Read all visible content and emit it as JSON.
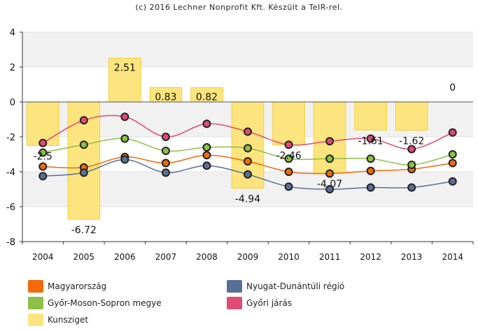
{
  "credit": "(c) 2016 Lechner Nonprofit Kft. Készült a TeIR-rel.",
  "chart_data": {
    "type": "bar+line",
    "categories": [
      "2004",
      "2005",
      "2006",
      "2007",
      "2008",
      "2009",
      "2010",
      "2011",
      "2012",
      "2013",
      "2014"
    ],
    "ylim": [
      -8,
      4
    ],
    "yticks": [
      4,
      2,
      0,
      -2,
      -4,
      -6,
      -8
    ],
    "ytick_labels": [
      "4",
      "2",
      "0",
      "-2",
      "-4",
      "-6",
      "-8"
    ],
    "grid_bands": true,
    "bar_series": {
      "name": "Kunsziget",
      "color": "#fce57e",
      "border": "#f2cf3a",
      "values": [
        -2.5,
        -6.72,
        2.51,
        0.83,
        0.82,
        -4.94,
        -2.46,
        -4.07,
        -1.61,
        -1.62,
        0
      ],
      "labels": [
        "-2.5",
        "-6.72",
        "2.51",
        "0.83",
        "0.82",
        "-4.94",
        "-2.46",
        "-4.07",
        "-1.61",
        "-1.62",
        "0"
      ]
    },
    "line_series": [
      {
        "name": "Magyarország",
        "color": "#f26a0a",
        "values": [
          -3.7,
          -3.75,
          -3.15,
          -3.5,
          -3.05,
          -3.4,
          -4.0,
          -4.1,
          -3.95,
          -3.85,
          -3.5
        ]
      },
      {
        "name": "Nyugat-Dunántúli régió",
        "color": "#5a6f96",
        "values": [
          -4.25,
          -4.05,
          -3.3,
          -4.05,
          -3.65,
          -4.15,
          -4.85,
          -5.0,
          -4.9,
          -4.9,
          -4.55
        ]
      },
      {
        "name": "Győr-Moson-Sopron megye",
        "color": "#8cc046",
        "values": [
          -2.9,
          -2.45,
          -2.1,
          -2.8,
          -2.6,
          -2.65,
          -3.25,
          -3.25,
          -3.25,
          -3.6,
          -3.0
        ]
      },
      {
        "name": "Győri járás",
        "color": "#e14a74",
        "values": [
          -2.35,
          -1.05,
          -0.85,
          -2.0,
          -1.25,
          -1.7,
          -2.45,
          -2.25,
          -2.1,
          -2.7,
          -1.75
        ]
      }
    ],
    "legend": [
      {
        "name": "Magyarország",
        "color": "#f26a0a"
      },
      {
        "name": "Nyugat-Dunántúli régió",
        "color": "#5a6f96"
      },
      {
        "name": "Győr-Moson-Sopron megye",
        "color": "#8cc046"
      },
      {
        "name": "Győri járás",
        "color": "#e14a74"
      },
      {
        "name": "Kunsziget",
        "color": "#fce57e"
      }
    ]
  }
}
